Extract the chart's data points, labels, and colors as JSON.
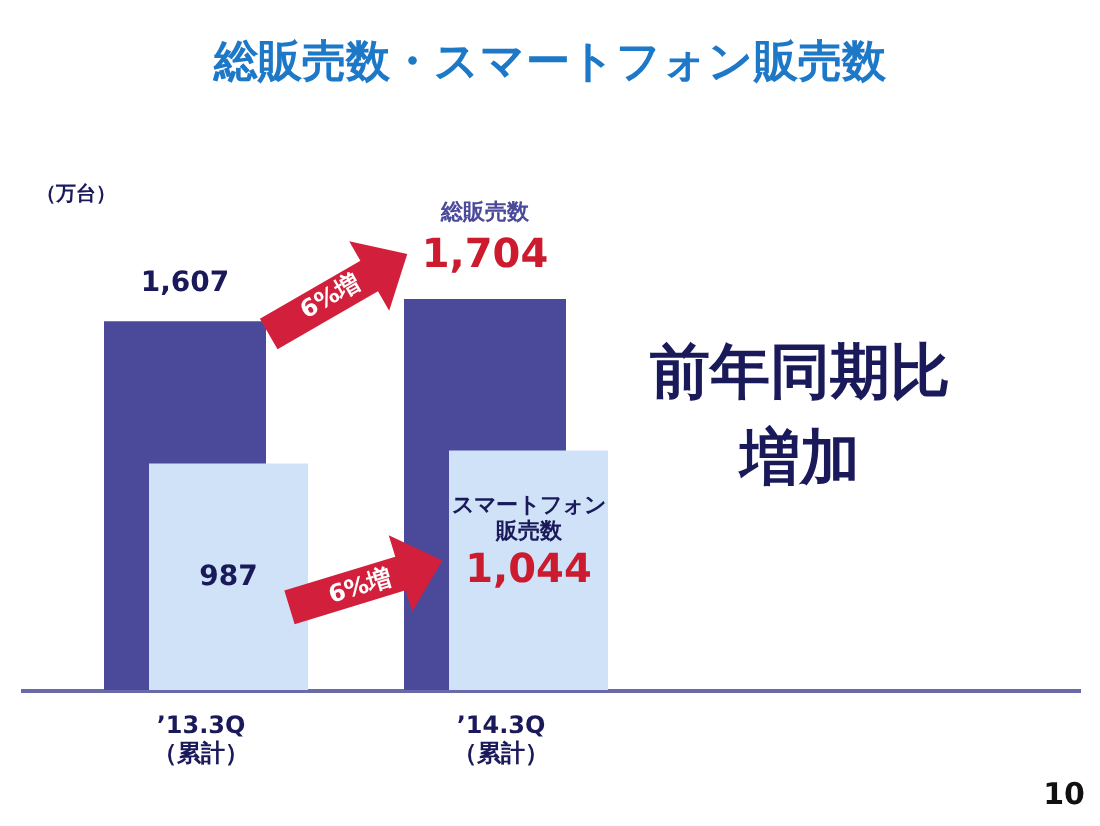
{
  "chart_data": {
    "type": "bar",
    "title": "総販売数・スマートフォン販売数",
    "ylabel": "（万台）",
    "categories": [
      "’13.3Q\n（累計）",
      "’14.3Q\n（累計）"
    ],
    "series": [
      {
        "name": "総販売数",
        "color": "#4b4a9a",
        "values": [
          1607,
          1704
        ],
        "value_labels": [
          "1,607",
          "1,704"
        ]
      },
      {
        "name": "スマートフォン販売数",
        "color": "#cfe2f8",
        "values": [
          987,
          1044
        ],
        "value_labels": [
          "987",
          "1,044"
        ]
      }
    ],
    "annotations": [
      "6%増",
      "6%増",
      "前年同期比",
      "増加",
      "10"
    ]
  }
}
